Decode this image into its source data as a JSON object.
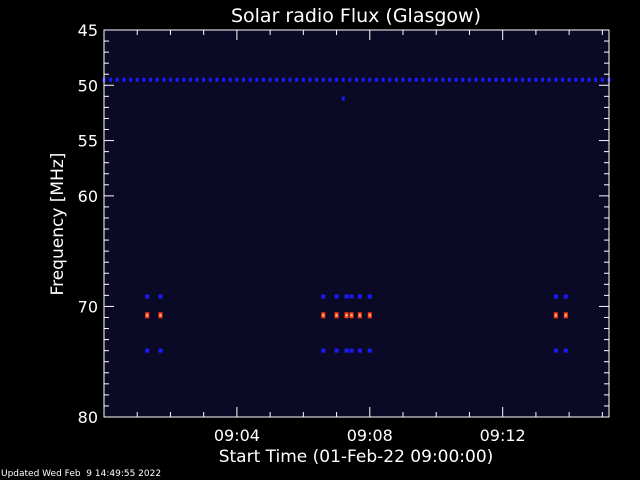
{
  "chart_data": {
    "type": "heatmap",
    "title": "Solar radio Flux (Glasgow)",
    "xlabel": "Start Time (01-Feb-22 09:00:00)",
    "ylabel": "Frequency [MHz]",
    "xlim_minutes": [
      0,
      15.2
    ],
    "ylim": [
      45,
      80
    ],
    "x_ticks": [
      {
        "minute": 4,
        "label": "09:04"
      },
      {
        "minute": 8,
        "label": "09:08"
      },
      {
        "minute": 12,
        "label": "09:12"
      }
    ],
    "y_ticks": [
      {
        "value": 45,
        "label": "45"
      },
      {
        "value": 50,
        "label": "50"
      },
      {
        "value": 55,
        "label": "55"
      },
      {
        "value": 60,
        "label": "60"
      },
      {
        "value": 70,
        "label": "70"
      },
      {
        "value": 80,
        "label": "80"
      }
    ],
    "y_minor_ticks": [
      46,
      47,
      48,
      49,
      51,
      52,
      53,
      54,
      56,
      57,
      58,
      59,
      61,
      62,
      63,
      64,
      65,
      66,
      67,
      68,
      69,
      71,
      72,
      73,
      74,
      75,
      76,
      77,
      78,
      79
    ],
    "grid": false,
    "colors": {
      "background": "#000000",
      "plot_background": "#0a0a26",
      "axes": "#ffffff",
      "low_intensity": "#1a1aff",
      "high_intensity": "#ff3b1a",
      "peak_intensity": "#ffd080"
    },
    "baseline_band": {
      "frequency_mhz": 49.5,
      "minute_start": 0,
      "minute_end": 15.2,
      "step_minutes": 0.2
    },
    "bursts": [
      {
        "minute": 1.3,
        "frequencies_mhz": [
          69.1,
          70.8,
          74.0
        ]
      },
      {
        "minute": 1.7,
        "frequencies_mhz": [
          69.1,
          70.8,
          74.0
        ]
      },
      {
        "minute": 6.6,
        "frequencies_mhz": [
          69.1,
          70.8,
          74.0
        ]
      },
      {
        "minute": 7.0,
        "frequencies_mhz": [
          69.1,
          70.8,
          74.0
        ]
      },
      {
        "minute": 7.3,
        "frequencies_mhz": [
          69.1,
          70.8,
          74.0
        ]
      },
      {
        "minute": 7.45,
        "frequencies_mhz": [
          69.1,
          70.8,
          74.0
        ]
      },
      {
        "minute": 7.7,
        "frequencies_mhz": [
          69.1,
          70.8,
          74.0
        ]
      },
      {
        "minute": 8.0,
        "frequencies_mhz": [
          69.1,
          70.8,
          74.0
        ]
      },
      {
        "minute": 13.6,
        "frequencies_mhz": [
          69.1,
          70.8,
          74.0
        ]
      },
      {
        "minute": 13.9,
        "frequencies_mhz": [
          69.1,
          70.8,
          74.0
        ]
      }
    ],
    "isolated_points": [
      {
        "minute": 7.2,
        "frequency_mhz": 51.2
      }
    ]
  },
  "footer": {
    "updated_text": "Updated Wed Feb  9 14:49:55 2022"
  }
}
